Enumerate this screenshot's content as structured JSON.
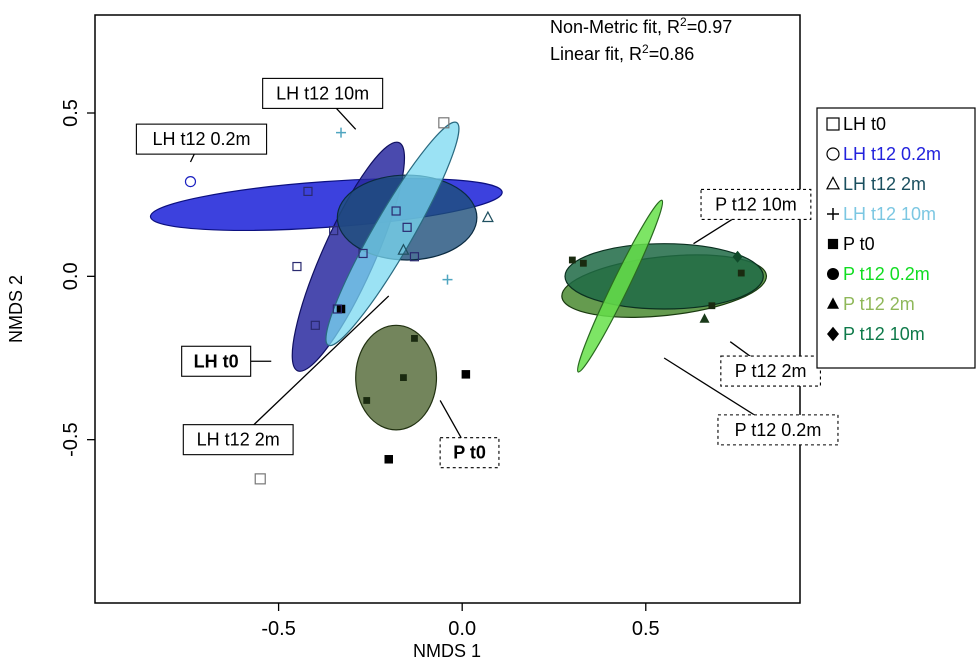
{
  "chart_data": {
    "type": "scatter",
    "xlabel": "NMDS 1",
    "ylabel": "NMDS 2",
    "xlim": [
      -1.0,
      0.92
    ],
    "ylim": [
      -1.0,
      0.8
    ],
    "xticks": [
      -0.5,
      0.0,
      0.5
    ],
    "yticks": [
      -0.5,
      0.0,
      0.5
    ],
    "xtick_labels": [
      "-0.5",
      "0.0",
      "0.5"
    ],
    "ytick_labels": [
      "-0.5",
      "0.0",
      "0.5"
    ],
    "grid": false,
    "legend_position": "outside-right",
    "annotations": [
      {
        "prefix": "Non-Metric fit, R",
        "sup": "2",
        "suffix": "=0.97"
      },
      {
        "prefix": "Linear fit, R",
        "sup": "2",
        "suffix": "=0.86"
      }
    ],
    "series": [
      {
        "name": "LH t0",
        "marker": "open-square",
        "color": "#777777",
        "text_color": "#000000",
        "points": [
          [
            -0.05,
            0.47
          ],
          [
            -0.55,
            -0.62
          ]
        ]
      },
      {
        "name": "LH t12 0.2m",
        "marker": "open-circle",
        "color": "#1a20c0",
        "text_color": "#2222dd",
        "points": [
          [
            -0.74,
            0.29
          ]
        ]
      },
      {
        "name": "LH t12 2m",
        "marker": "open-triangle",
        "color": "#1f5060",
        "text_color": "#1a4f5f",
        "points": [
          [
            -0.16,
            0.08
          ],
          [
            0.07,
            0.18
          ]
        ]
      },
      {
        "name": "LH t12 10m",
        "marker": "plus",
        "color": "#4fa5c0",
        "text_color": "#7cc7e2",
        "points": [
          [
            -0.33,
            0.44
          ],
          [
            -0.04,
            -0.01
          ]
        ]
      },
      {
        "name": "P t0",
        "marker": "filled-square",
        "color": "#000000",
        "text_color": "#000000",
        "points": [
          [
            -0.33,
            -0.1
          ],
          [
            0.01,
            -0.3
          ],
          [
            -0.2,
            -0.56
          ]
        ]
      },
      {
        "name": "P t12 0.2m",
        "marker": "filled-circle",
        "color": "#000000",
        "text_color": "#11dd22",
        "points": []
      },
      {
        "name": "P t12 2m",
        "marker": "filled-triangle",
        "color": "#1a3a1a",
        "text_color": "#8fb85a",
        "points": [
          [
            0.66,
            -0.13
          ]
        ]
      },
      {
        "name": "P t12 10m",
        "marker": "filled-diamond",
        "color": "#0f4a2a",
        "text_color": "#0f7a4a",
        "points": [
          [
            0.75,
            0.06
          ]
        ]
      }
    ],
    "extra_open_markers": [
      [
        -0.42,
        0.26
      ],
      [
        -0.35,
        0.14
      ],
      [
        -0.45,
        0.03
      ],
      [
        -0.4,
        -0.15
      ],
      [
        -0.34,
        -0.1
      ],
      [
        -0.27,
        0.07
      ],
      [
        -0.18,
        0.2
      ],
      [
        -0.15,
        0.15
      ],
      [
        -0.13,
        0.06
      ]
    ],
    "extra_filled_markers": [
      [
        -0.13,
        -0.19
      ],
      [
        -0.16,
        -0.31
      ],
      [
        -0.26,
        -0.38
      ],
      [
        0.33,
        0.04
      ],
      [
        0.3,
        0.05
      ],
      [
        0.76,
        0.01
      ],
      [
        0.68,
        -0.09
      ]
    ],
    "ellipses": [
      {
        "group": "LH t12 0.2m",
        "cx": -0.37,
        "cy": 0.22,
        "rx": 0.48,
        "ry": 0.07,
        "angle": -4,
        "fill": "#1a20d8",
        "stroke": "#0c1080",
        "opacity": 0.85
      },
      {
        "group": "LH t0",
        "cx": -0.31,
        "cy": 0.06,
        "rx": 0.34,
        "ry": 0.08,
        "angle": -66,
        "fill": "#2a2aa0",
        "stroke": "#101060",
        "opacity": 0.85
      },
      {
        "group": "LH t12 2m",
        "cx": -0.15,
        "cy": 0.18,
        "rx": 0.19,
        "ry": 0.13,
        "angle": 0,
        "fill": "#1e4f7a",
        "stroke": "#0a2a40",
        "opacity": 0.8
      },
      {
        "group": "LH t12 10m",
        "cx": -0.19,
        "cy": 0.13,
        "rx": 0.35,
        "ry": 0.06,
        "angle": -60,
        "fill": "#7ad8f0",
        "stroke": "#2a6a80",
        "opacity": 0.75
      },
      {
        "group": "P t0",
        "cx": -0.18,
        "cy": -0.31,
        "rx": 0.11,
        "ry": 0.16,
        "angle": 0,
        "fill": "#5a7040",
        "stroke": "#203010",
        "opacity": 0.85
      },
      {
        "group": "P t12 2m",
        "cx": 0.55,
        "cy": -0.03,
        "rx": 0.28,
        "ry": 0.09,
        "angle": -6,
        "fill": "#4a8a30",
        "stroke": "#1a3a10",
        "opacity": 0.85
      },
      {
        "group": "P t12 10m",
        "cx": 0.55,
        "cy": 0.0,
        "rx": 0.27,
        "ry": 0.1,
        "angle": 0,
        "fill": "#1e6a45",
        "stroke": "#0a3020",
        "opacity": 0.85
      },
      {
        "group": "P t12 0.2m",
        "cx": 0.43,
        "cy": -0.03,
        "rx": 0.26,
        "ry": 0.025,
        "angle": -64,
        "fill": "#66e04a",
        "stroke": "#2a6a20",
        "opacity": 0.85
      }
    ],
    "callouts": [
      {
        "text": "LH t12 10m",
        "bold": false,
        "dashed": false,
        "at": [
          -0.38,
          0.56
        ],
        "anchor_at": [
          -0.38,
          0.56
        ],
        "line_to": [
          -0.29,
          0.45
        ]
      },
      {
        "text": "LH t12 0.2m",
        "bold": false,
        "dashed": false,
        "at": [
          -0.71,
          0.42
        ],
        "anchor_at": [
          -0.71,
          0.42
        ],
        "line_to": [
          -0.74,
          0.35
        ]
      },
      {
        "text": "LH t0",
        "bold": true,
        "dashed": false,
        "at": [
          -0.67,
          -0.26
        ],
        "anchor_at": [
          -0.67,
          -0.26
        ],
        "line_to": [
          -0.52,
          -0.26
        ]
      },
      {
        "text": "LH t12 2m",
        "bold": false,
        "dashed": false,
        "at": [
          -0.61,
          -0.5
        ],
        "anchor_at": [
          -0.61,
          -0.5
        ],
        "line_to": [
          -0.2,
          -0.06
        ]
      },
      {
        "text": "P t0",
        "bold": true,
        "dashed": true,
        "at": [
          0.02,
          -0.54
        ],
        "anchor_at": [
          0.02,
          -0.54
        ],
        "line_to": [
          -0.06,
          -0.38
        ]
      },
      {
        "text": "P t12 10m",
        "bold": false,
        "dashed": true,
        "at": [
          0.8,
          0.22
        ],
        "anchor_at": [
          0.8,
          0.22
        ],
        "line_to": [
          0.63,
          0.1
        ]
      },
      {
        "text": "P t12 2m",
        "bold": false,
        "dashed": true,
        "at": [
          0.84,
          -0.29
        ],
        "anchor_at": [
          0.84,
          -0.29
        ],
        "line_to": [
          0.73,
          -0.2
        ]
      },
      {
        "text": "P t12 0.2m",
        "bold": false,
        "dashed": true,
        "at": [
          0.86,
          -0.47
        ],
        "anchor_at": [
          0.86,
          -0.47
        ],
        "line_to": [
          0.55,
          -0.25
        ]
      }
    ]
  }
}
